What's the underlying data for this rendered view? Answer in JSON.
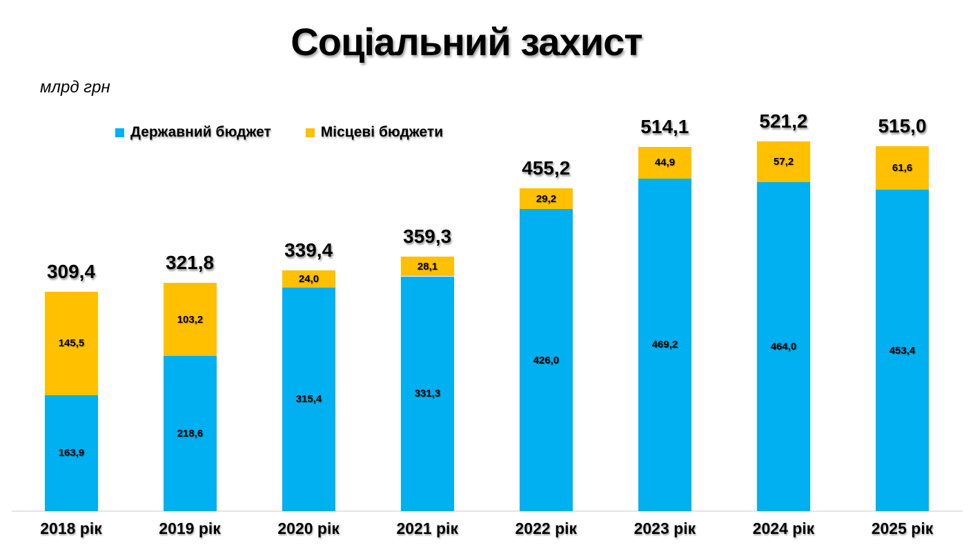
{
  "title": "Соціальний захист",
  "units_label": "млрд грн",
  "chart_data": {
    "type": "bar",
    "stacked": true,
    "title": "Соціальний захист",
    "ylabel": "млрд грн",
    "grid": false,
    "legend_position": "top-left",
    "ylim": [
      0,
      566
    ],
    "categories": [
      "2018 рік",
      "2019 рік",
      "2020 рік",
      "2021 рік",
      "2022 рік",
      "2023 рік",
      "2024 рік",
      "2025 рік"
    ],
    "series": [
      {
        "name": "Державний бюджет",
        "color": "#00B0F0",
        "values": [
          163.9,
          218.6,
          315.4,
          331.3,
          426.0,
          469.2,
          464.0,
          453.4
        ]
      },
      {
        "name": "Місцеві бюджети",
        "color": "#FFC000",
        "values": [
          145.5,
          103.2,
          24.0,
          28.1,
          29.2,
          44.9,
          57.2,
          61.6
        ]
      }
    ],
    "totals": [
      309.4,
      321.8,
      339.4,
      359.3,
      455.2,
      514.1,
      521.2,
      515.0
    ],
    "decimal_separator": ","
  }
}
